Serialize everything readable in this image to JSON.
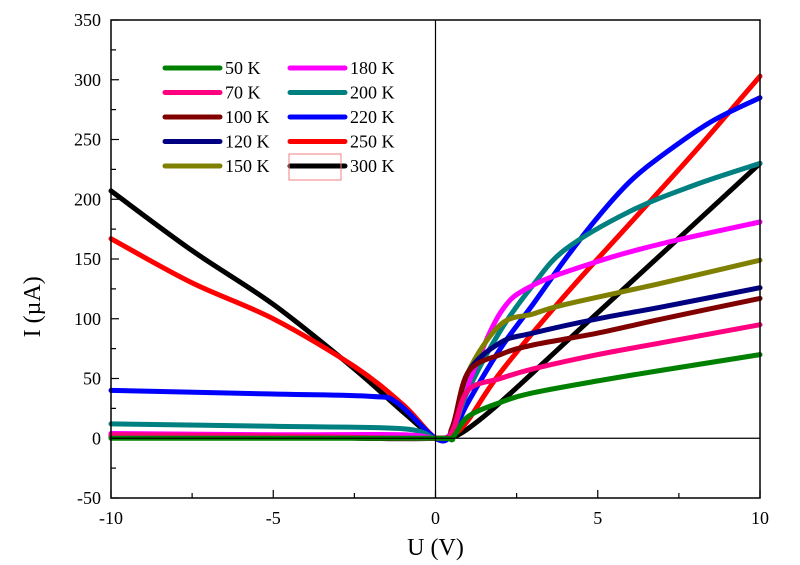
{
  "chart_data": {
    "type": "line",
    "title": "",
    "xlabel": "U (V)",
    "ylabel": "I (µA)",
    "xlim": [
      -10,
      10
    ],
    "ylim": [
      -50,
      350
    ],
    "xticks": [
      -10,
      -5,
      0,
      5,
      10
    ],
    "yticks": [
      -50,
      0,
      50,
      100,
      150,
      200,
      250,
      300,
      350
    ],
    "x_tick_labels": [
      "-10",
      "-5",
      "0",
      "5",
      "10"
    ],
    "y_tick_labels": [
      "-50",
      "0",
      "50",
      "100",
      "150",
      "200",
      "250",
      "300",
      "350"
    ],
    "grid": false,
    "zero_lines": true,
    "legend_position": "top-left",
    "legend_columns": 2,
    "series": [
      {
        "name": "50 K",
        "color": "#008000",
        "points": [
          [
            -10,
            0
          ],
          [
            -5,
            0
          ],
          [
            0,
            0
          ],
          [
            0.5,
            0
          ],
          [
            1,
            18
          ],
          [
            2,
            30
          ],
          [
            3,
            38
          ],
          [
            5,
            48
          ],
          [
            7,
            57
          ],
          [
            10,
            70
          ]
        ]
      },
      {
        "name": "70 K",
        "color": "#ff0080",
        "points": [
          [
            -10,
            3
          ],
          [
            -5,
            2
          ],
          [
            0,
            0
          ],
          [
            0.5,
            5
          ],
          [
            1,
            40
          ],
          [
            2,
            50
          ],
          [
            3,
            58
          ],
          [
            5,
            70
          ],
          [
            7,
            80
          ],
          [
            10,
            95
          ]
        ]
      },
      {
        "name": "100 K",
        "color": "#800000",
        "points": [
          [
            -10,
            1
          ],
          [
            -5,
            1
          ],
          [
            0,
            0
          ],
          [
            0.5,
            8
          ],
          [
            1,
            55
          ],
          [
            2,
            70
          ],
          [
            3,
            78
          ],
          [
            5,
            88
          ],
          [
            7,
            100
          ],
          [
            10,
            117
          ]
        ]
      },
      {
        "name": "120 K",
        "color": "#000080",
        "points": [
          [
            -10,
            1
          ],
          [
            -5,
            1
          ],
          [
            0,
            0
          ],
          [
            0.5,
            8
          ],
          [
            1,
            55
          ],
          [
            2,
            80
          ],
          [
            3,
            88
          ],
          [
            5,
            100
          ],
          [
            7,
            110
          ],
          [
            10,
            126
          ]
        ]
      },
      {
        "name": "150 K",
        "color": "#808000",
        "points": [
          [
            -10,
            1
          ],
          [
            -5,
            1
          ],
          [
            0,
            0
          ],
          [
            0.5,
            6
          ],
          [
            1,
            55
          ],
          [
            2,
            95
          ],
          [
            3,
            104
          ],
          [
            4,
            112
          ],
          [
            7,
            130
          ],
          [
            10,
            149
          ]
        ]
      },
      {
        "name": "180 K",
        "color": "#ff00ff",
        "points": [
          [
            -10,
            4
          ],
          [
            -5,
            3
          ],
          [
            -1,
            3
          ],
          [
            0,
            0
          ],
          [
            0.5,
            5
          ],
          [
            1,
            45
          ],
          [
            2,
            105
          ],
          [
            3,
            128
          ],
          [
            5,
            148
          ],
          [
            7,
            163
          ],
          [
            10,
            181
          ]
        ]
      },
      {
        "name": "200 K",
        "color": "#008080",
        "points": [
          [
            -10,
            12
          ],
          [
            -5,
            10
          ],
          [
            -1,
            8
          ],
          [
            0,
            0
          ],
          [
            0.5,
            5
          ],
          [
            1,
            40
          ],
          [
            2,
            90
          ],
          [
            3,
            128
          ],
          [
            4,
            158
          ],
          [
            6,
            190
          ],
          [
            8,
            212
          ],
          [
            10,
            230
          ]
        ]
      },
      {
        "name": "220 K",
        "color": "#0000ff",
        "points": [
          [
            -10,
            40
          ],
          [
            -5,
            37
          ],
          [
            -2,
            35
          ],
          [
            -1.2,
            30
          ],
          [
            0,
            0
          ],
          [
            0.5,
            3
          ],
          [
            1,
            30
          ],
          [
            2,
            75
          ],
          [
            3,
            112
          ],
          [
            4,
            150
          ],
          [
            5,
            185
          ],
          [
            6,
            215
          ],
          [
            7,
            237
          ],
          [
            8.5,
            265
          ],
          [
            10,
            285
          ]
        ]
      },
      {
        "name": "250 K",
        "color": "#ff0000",
        "points": [
          [
            -10,
            167
          ],
          [
            -7.5,
            130
          ],
          [
            -5,
            100
          ],
          [
            -2.5,
            60
          ],
          [
            -1,
            28
          ],
          [
            0,
            0
          ],
          [
            0.5,
            2
          ],
          [
            1,
            15
          ],
          [
            2,
            55
          ],
          [
            4,
            120
          ],
          [
            6,
            180
          ],
          [
            8,
            240
          ],
          [
            10,
            303
          ]
        ]
      },
      {
        "name": "300 K",
        "color": "#000000",
        "points": [
          [
            -10,
            207
          ],
          [
            -7.5,
            157
          ],
          [
            -5,
            112
          ],
          [
            -2.5,
            58
          ],
          [
            -1,
            22
          ],
          [
            0,
            0
          ],
          [
            0.5,
            1
          ],
          [
            1,
            8
          ],
          [
            2,
            30
          ],
          [
            4,
            80
          ],
          [
            6,
            130
          ],
          [
            8,
            180
          ],
          [
            10,
            230
          ]
        ]
      }
    ]
  }
}
